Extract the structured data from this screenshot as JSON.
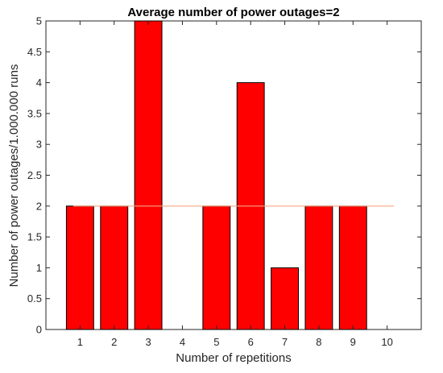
{
  "chart_data": {
    "type": "bar",
    "title": "Average number of power outages=2",
    "xlabel": "Number of repetitions",
    "ylabel": "Number of power outages/1.000.000 runs",
    "categories": [
      "1",
      "2",
      "3",
      "4",
      "5",
      "6",
      "7",
      "8",
      "9",
      "10"
    ],
    "values": [
      2,
      2,
      5,
      0,
      2,
      4,
      1,
      2,
      2,
      0
    ],
    "xlim": [
      0,
      11
    ],
    "ylim": [
      0,
      5
    ],
    "yticks": [
      "0",
      "0.5",
      "1",
      "1.5",
      "2",
      "2.5",
      "3",
      "3.5",
      "4",
      "4.5",
      "5"
    ],
    "reference_line": {
      "y": 2
    },
    "grid": false,
    "bar_color": "#ff0000",
    "bar_edge_color": "#000000",
    "reference_line_color": "#f4a582"
  }
}
